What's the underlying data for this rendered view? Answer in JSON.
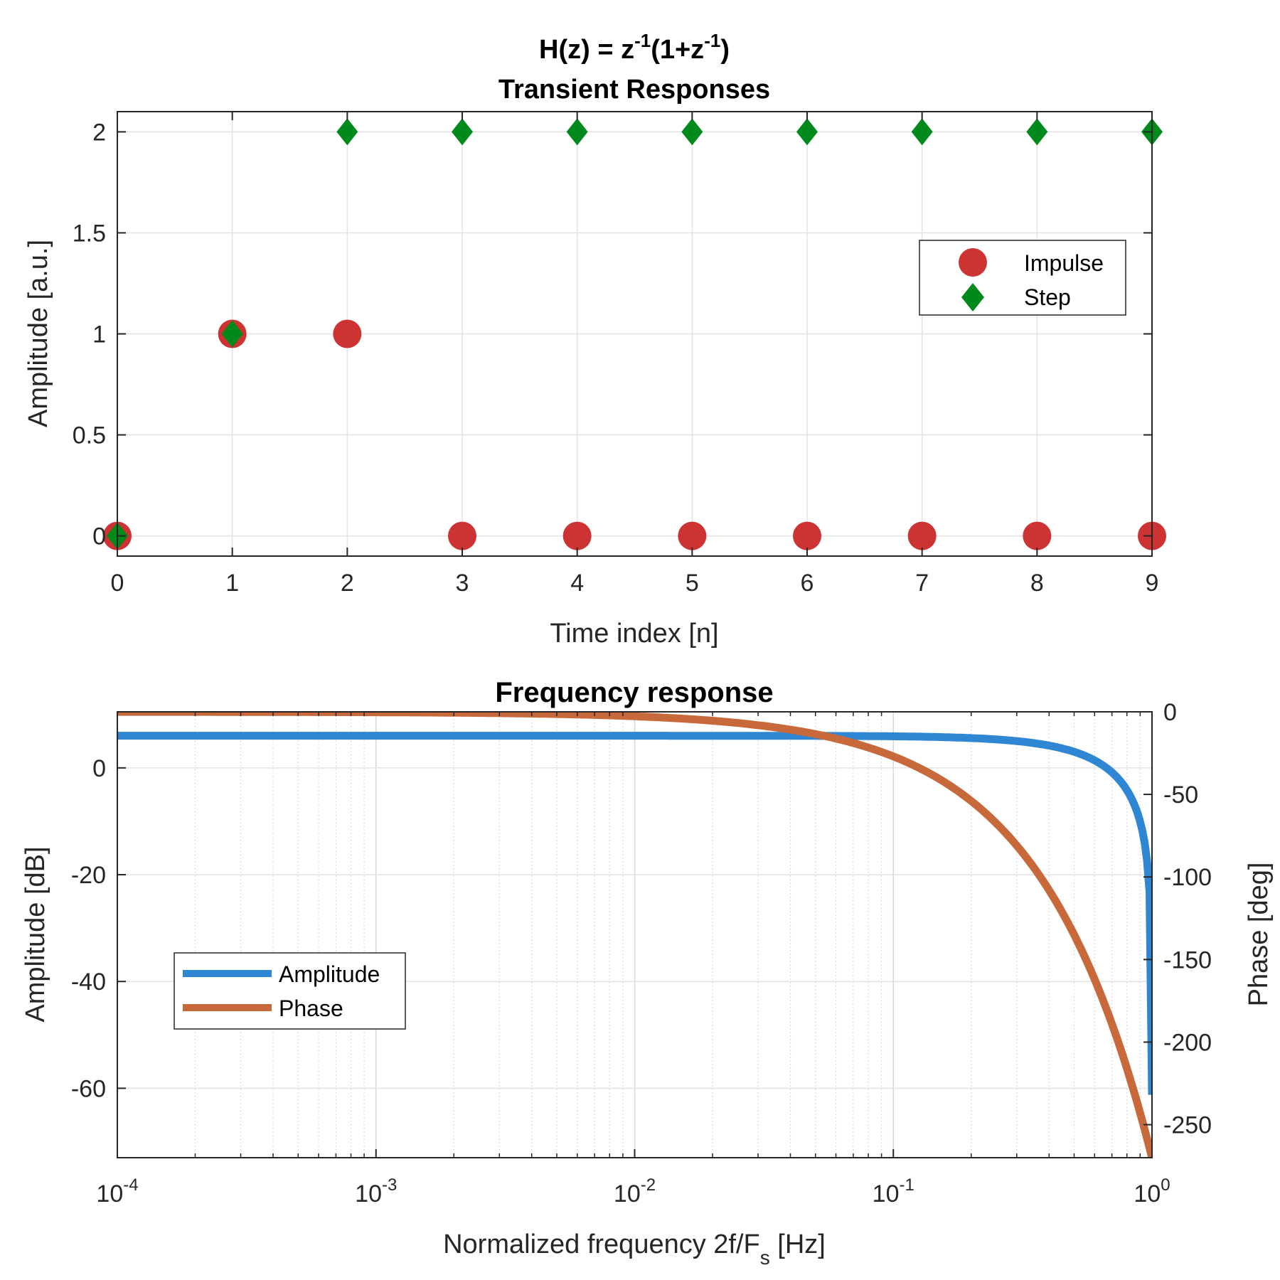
{
  "chart_data": [
    {
      "type": "scatter",
      "title_lines": [
        "Transient Responses"
      ],
      "title_formula": {
        "base": "H(z) = z",
        "sup1": "-1",
        "mid": "(1+z",
        "sup2": "-1",
        "end": ")"
      },
      "xlabel": "Time index [n]",
      "ylabel": "Amplitude [a.u.]",
      "xlim": [
        0,
        9
      ],
      "ylim": [
        -0.1,
        2.1
      ],
      "xticks": [
        "0",
        "1",
        "2",
        "3",
        "4",
        "5",
        "6",
        "7",
        "8",
        "9"
      ],
      "yticks": [
        "0",
        "0.5",
        "1",
        "1.5",
        "2"
      ],
      "grid": true,
      "legend_position": "right",
      "series": [
        {
          "name": "Impulse",
          "marker": "circle",
          "color": "#cd3333",
          "x": [
            0,
            1,
            2,
            3,
            4,
            5,
            6,
            7,
            8,
            9
          ],
          "y": [
            0,
            1,
            1,
            0,
            0,
            0,
            0,
            0,
            0,
            0
          ]
        },
        {
          "name": "Step",
          "marker": "diamond",
          "color": "#008a1b",
          "x": [
            0,
            1,
            2,
            3,
            4,
            5,
            6,
            7,
            8,
            9
          ],
          "y": [
            0,
            1,
            2,
            2,
            2,
            2,
            2,
            2,
            2,
            2
          ]
        }
      ]
    },
    {
      "type": "line",
      "title": "Frequency response",
      "xscale": "log",
      "xlim": [
        0.0001,
        1
      ],
      "xtick_exponents": [
        "-4",
        "-3",
        "-2",
        "-1",
        "0"
      ],
      "xtick_base": "10",
      "xlabel_parts": {
        "main": "Normalized frequency 2f/F",
        "sub": "s",
        "end": " [Hz]"
      },
      "ylabel_left": "Amplitude [dB]",
      "ylabel_right": "Phase [deg]",
      "ylim_left": [
        -73,
        10.5
      ],
      "ylim_right": [
        -270,
        0
      ],
      "yticks_left": [
        "0",
        "-20",
        "-40",
        "-60"
      ],
      "yticks_right": [
        "0",
        "-50",
        "-100",
        "-150",
        "-200",
        "-250"
      ],
      "grid": true,
      "legend_position": "lower-left",
      "series": [
        {
          "name": "Amplitude",
          "axis": "left",
          "color": "#2f86d2",
          "x": [
            0.0001,
            0.001,
            0.01,
            0.1,
            0.3,
            0.5,
            0.7,
            0.8,
            0.9,
            0.95,
            0.99,
            0.999
          ],
          "y": [
            6.02,
            6.02,
            6.02,
            5.91,
            5.03,
            3.01,
            -0.86,
            -3.85,
            -9.95,
            -16.06,
            -30.06,
            -70
          ]
        },
        {
          "name": "Phase",
          "axis": "right",
          "color": "#c8693b",
          "x": [
            0.0001,
            0.001,
            0.01,
            0.03,
            0.05,
            0.1,
            0.2,
            0.3,
            0.5,
            0.7,
            0.9,
            0.999
          ],
          "y": [
            -0.03,
            -0.27,
            -2.7,
            -8.1,
            -13.5,
            -27,
            -54,
            -81,
            -135,
            -189,
            -243,
            -269.7
          ]
        }
      ]
    }
  ]
}
